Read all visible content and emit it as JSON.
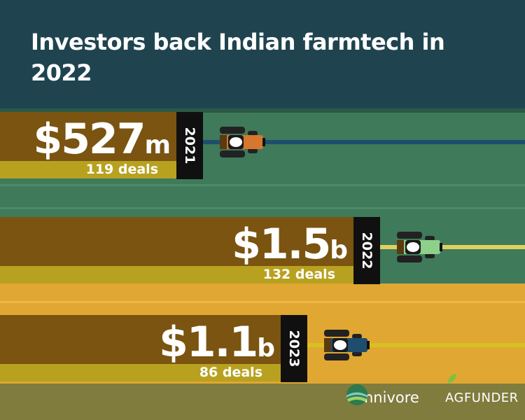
{
  "title": "Investors back Indian farmtech in 2022",
  "chart_data": {
    "type": "bar",
    "title": "Investors back Indian farmtech in 2022",
    "categories": [
      "2021",
      "2022",
      "2023"
    ],
    "series": [
      {
        "values": [
          0.527,
          1.5,
          1.1
        ]
      }
    ],
    "amount_labels": [
      {
        "num": "$527",
        "unit": "m"
      },
      {
        "num": "$1.5",
        "unit": "b"
      },
      {
        "num": "$1.1",
        "unit": "b"
      }
    ],
    "deal_labels": [
      "119 deals",
      "132 deals",
      "86 deals"
    ],
    "deal_counts": [
      119,
      132,
      86
    ],
    "tractor_colors": [
      "#d5772e",
      "#8ed08a",
      "#1e4d6e"
    ],
    "legend": "none",
    "grid": false
  },
  "logos": {
    "omnivore": "omnivore",
    "agfunder": "AGFUNDER"
  },
  "colors": {
    "header_bg": "#1f4450",
    "field_green": "#3f7a5a",
    "field_gold": "#e0a732",
    "bar_brown": "#7a5410",
    "deal_band": "#b8a11f",
    "year_tag": "#101010"
  }
}
